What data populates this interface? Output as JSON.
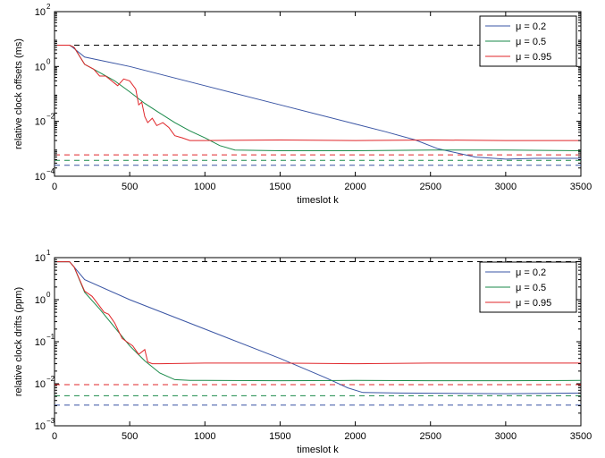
{
  "chart_data": [
    {
      "type": "line",
      "xlabel": "timeslot k",
      "ylabel": "relative clock offsets (ms)",
      "xlim": [
        0,
        3500
      ],
      "ylim": [
        0.0001,
        100
      ],
      "yscale": "log",
      "grid": false,
      "legend_position": "top-right",
      "xticks": [
        "0",
        "500",
        "1000",
        "1500",
        "2000",
        "2500",
        "3000",
        "3500"
      ],
      "yticks": [
        {
          "value": 0.0001,
          "base": "10",
          "exp": "−4"
        },
        {
          "value": 0.01,
          "base": "10",
          "exp": "−2"
        },
        {
          "value": 1,
          "base": "10",
          "exp": "0"
        },
        {
          "value": 100,
          "base": "10",
          "exp": "2"
        }
      ],
      "series": [
        {
          "name": "μ = 0.2",
          "color": "#3a55a4",
          "x": [
            0,
            100,
            120,
            200,
            500,
            1000,
            1500,
            2000,
            2200,
            2400,
            2550,
            2800,
            3000,
            3200,
            3500
          ],
          "y": [
            6,
            6,
            5,
            2.2,
            1.0,
            0.2,
            0.04,
            0.008,
            0.0042,
            0.0021,
            0.001,
            0.0005,
            0.00042,
            0.00045,
            0.00045
          ]
        },
        {
          "name": "μ = 0.5",
          "color": "#1a8a4a",
          "x": [
            0,
            100,
            130,
            200,
            300,
            400,
            500,
            600,
            700,
            800,
            900,
            1000,
            1100,
            1200,
            1500,
            2000,
            2500,
            3000,
            3500
          ],
          "y": [
            6,
            6,
            5,
            1.2,
            0.6,
            0.3,
            0.12,
            0.045,
            0.02,
            0.009,
            0.0045,
            0.0025,
            0.0013,
            0.0009,
            0.00085,
            0.00085,
            0.0009,
            0.0009,
            0.00085
          ]
        },
        {
          "name": "μ = 0.95",
          "color": "#e0262a",
          "x": [
            0,
            100,
            130,
            200,
            260,
            300,
            340,
            380,
            420,
            460,
            500,
            540,
            560,
            580,
            600,
            620,
            650,
            680,
            720,
            760,
            800,
            850,
            900,
            1000,
            1500,
            2000,
            2500,
            3000,
            3500
          ],
          "y": [
            6,
            6,
            5,
            1.2,
            0.8,
            0.45,
            0.45,
            0.3,
            0.2,
            0.35,
            0.3,
            0.15,
            0.04,
            0.05,
            0.015,
            0.009,
            0.013,
            0.007,
            0.009,
            0.006,
            0.003,
            0.0025,
            0.002,
            0.002,
            0.0021,
            0.002,
            0.0021,
            0.002,
            0.002
          ]
        }
      ],
      "reference_lines": [
        {
          "y": 6,
          "color": "#000000"
        },
        {
          "y": 0.0006,
          "color": "#e0262a"
        },
        {
          "y": 0.00038,
          "color": "#1a8a4a"
        },
        {
          "y": 0.00025,
          "color": "#3a55a4"
        }
      ]
    },
    {
      "type": "line",
      "xlabel": "timeslot k",
      "ylabel": "relative clock drifts (ppm)",
      "xlim": [
        0,
        3500
      ],
      "ylim": [
        0.001,
        10
      ],
      "yscale": "log",
      "grid": false,
      "legend_position": "top-right",
      "xticks": [
        "0",
        "500",
        "1000",
        "1500",
        "2000",
        "2500",
        "3000",
        "3500"
      ],
      "yticks": [
        {
          "value": 0.001,
          "base": "10",
          "exp": "−3"
        },
        {
          "value": 0.01,
          "base": "10",
          "exp": "−2"
        },
        {
          "value": 0.1,
          "base": "10",
          "exp": "−1"
        },
        {
          "value": 1,
          "base": "10",
          "exp": "0"
        },
        {
          "value": 10,
          "base": "10",
          "exp": "1"
        }
      ],
      "series": [
        {
          "name": "μ = 0.2",
          "color": "#3a55a4",
          "x": [
            0,
            100,
            130,
            200,
            500,
            1000,
            1500,
            1800,
            1950,
            2050,
            2300,
            3000,
            3500
          ],
          "y": [
            8,
            8,
            6,
            3.0,
            1.0,
            0.2,
            0.04,
            0.014,
            0.008,
            0.0062,
            0.006,
            0.0058,
            0.006
          ]
        },
        {
          "name": "μ = 0.5",
          "color": "#1a8a4a",
          "x": [
            0,
            100,
            130,
            200,
            300,
            400,
            500,
            600,
            700,
            800,
            900,
            1000,
            1500,
            2000,
            2500,
            3000,
            3500
          ],
          "y": [
            8,
            8,
            6,
            1.5,
            0.6,
            0.22,
            0.08,
            0.035,
            0.018,
            0.0125,
            0.012,
            0.012,
            0.0118,
            0.012,
            0.0118,
            0.0118,
            0.012
          ]
        },
        {
          "name": "μ = 0.95",
          "color": "#e0262a",
          "x": [
            0,
            100,
            130,
            200,
            250,
            300,
            330,
            360,
            400,
            450,
            480,
            520,
            560,
            600,
            620,
            650,
            700,
            1000,
            1500,
            2000,
            2500,
            3000,
            3500
          ],
          "y": [
            8,
            8,
            6,
            1.6,
            1.2,
            0.7,
            0.5,
            0.45,
            0.28,
            0.12,
            0.1,
            0.08,
            0.05,
            0.065,
            0.033,
            0.03,
            0.03,
            0.031,
            0.031,
            0.03,
            0.031,
            0.031,
            0.031
          ]
        }
      ],
      "reference_lines": [
        {
          "y": 8,
          "color": "#000000"
        },
        {
          "y": 0.0095,
          "color": "#e0262a"
        },
        {
          "y": 0.0052,
          "color": "#1a8a4a"
        },
        {
          "y": 0.0031,
          "color": "#3a55a4"
        }
      ]
    }
  ]
}
